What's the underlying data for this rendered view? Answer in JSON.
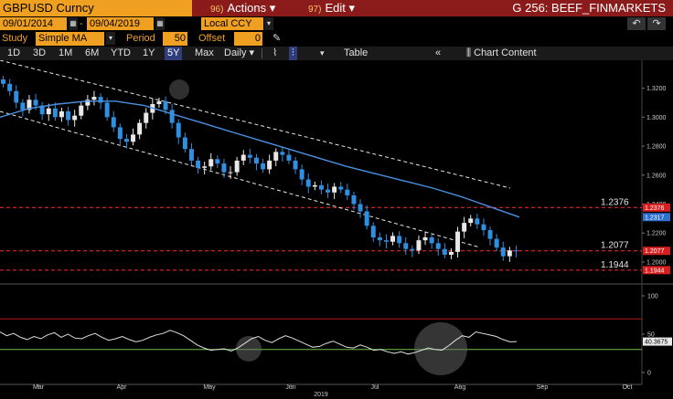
{
  "header": {
    "ticker": "GBPUSD Curncy",
    "actions": {
      "num": "96)",
      "label": "Actions"
    },
    "edit": {
      "num": "97)",
      "label": "Edit"
    },
    "title": "G 256: BEEF_FINMARKETS"
  },
  "range": {
    "start": "09/01/2014",
    "separator": "-",
    "end": "09/04/2019",
    "currency": "Local CCY"
  },
  "study": {
    "label": "Study",
    "value": "Simple MA",
    "period_label": "Period",
    "period": "50",
    "offset_label": "Offset",
    "offset": "0"
  },
  "toolbar": {
    "periods": [
      "1D",
      "3D",
      "1M",
      "6M",
      "YTD",
      "1Y",
      "5Y",
      "Max"
    ],
    "selected": "5Y",
    "frequency": "Daily",
    "table": "Table",
    "chart_content": "Chart Content"
  },
  "colors": {
    "up": "#e8e8e8",
    "down": "#2f8fe0",
    "ma": "#4a8fe0",
    "resistance": "#ff2a2a",
    "rsi": "#e0e0e0",
    "rsi_low": "#6fbf4a",
    "rsi_high": "#b01818"
  },
  "chart_data": [
    {
      "type": "candlestick",
      "x_axis": {
        "months": [
          "Mar",
          "Apr",
          "May",
          "Jun",
          "Jul",
          "Aug",
          "Sep",
          "Oct"
        ],
        "year": "2019"
      },
      "y_ticks": [
        "1.3200",
        "1.3000",
        "1.2800",
        "1.2600",
        "1.2400",
        "1.2200",
        "1.2000"
      ],
      "ylim": [
        1.188,
        1.338
      ],
      "sma_50": [
        1.3,
        1.306,
        1.309,
        1.311,
        1.311,
        1.308,
        1.302,
        1.296,
        1.29,
        1.284,
        1.278,
        1.272,
        1.266,
        1.261,
        1.256,
        1.251,
        1.245,
        1.238,
        1.231
      ],
      "close": [
        1.323,
        1.318,
        1.31,
        1.305,
        1.312,
        1.308,
        1.302,
        1.306,
        1.3,
        1.304,
        1.298,
        1.301,
        1.308,
        1.312,
        1.314,
        1.31,
        1.3,
        1.293,
        1.285,
        1.283,
        1.288,
        1.296,
        1.303,
        1.309,
        1.311,
        1.305,
        1.296,
        1.286,
        1.278,
        1.27,
        1.265,
        1.266,
        1.271,
        1.268,
        1.262,
        1.262,
        1.27,
        1.274,
        1.272,
        1.268,
        1.264,
        1.27,
        1.276,
        1.274,
        1.27,
        1.264,
        1.257,
        1.252,
        1.253,
        1.25,
        1.248,
        1.252,
        1.25,
        1.246,
        1.24,
        1.235,
        1.225,
        1.217,
        1.215,
        1.214,
        1.218,
        1.213,
        1.209,
        1.208,
        1.215,
        1.217,
        1.213,
        1.209,
        1.205,
        1.207,
        1.221,
        1.227,
        1.23,
        1.226,
        1.222,
        1.216,
        1.21,
        1.204,
        1.208,
        1.2077
      ],
      "annotations": [
        {
          "label": "1.2376",
          "value": 1.2376,
          "tag": "1.2376"
        },
        {
          "label": "1.2077",
          "value": 1.2077,
          "tag": "1.2077"
        },
        {
          "label": "1.1944",
          "value": 1.1944,
          "tag": "1.1944"
        }
      ],
      "last_sma_tag": "1.2317"
    },
    {
      "type": "line",
      "name": "RSI",
      "y_ticks": [
        "100",
        "50",
        "0"
      ],
      "ylim": [
        0,
        100
      ],
      "levels": [
        70,
        30
      ],
      "last_tag": "40.3675",
      "values": [
        53,
        48,
        51,
        46,
        43,
        47,
        44,
        49,
        52,
        46,
        50,
        45,
        44,
        48,
        51,
        46,
        42,
        44,
        47,
        43,
        40,
        42,
        46,
        49,
        51,
        55,
        52,
        48,
        42,
        36,
        32,
        29,
        30,
        31,
        28,
        32,
        38,
        44,
        47,
        42,
        39,
        44,
        48,
        45,
        41,
        37,
        33,
        34,
        38,
        41,
        37,
        33,
        32,
        36,
        33,
        29,
        30,
        27,
        25,
        27,
        24,
        26,
        29,
        32,
        30,
        29,
        35,
        42,
        48,
        46,
        53,
        51,
        49,
        47,
        43,
        40,
        40.3675
      ]
    }
  ]
}
